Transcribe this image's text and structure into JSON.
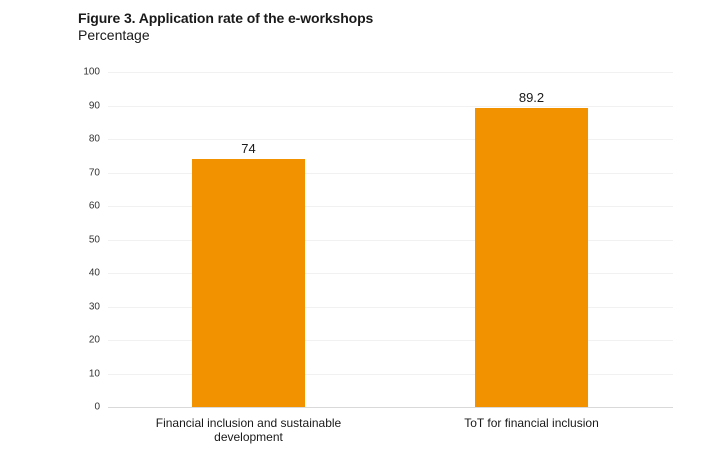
{
  "header": {
    "title": "Figure 3. Application rate of the e-workshops",
    "subtitle": "Percentage"
  },
  "chart_data": {
    "type": "bar",
    "title": "Figure 3. Application rate of the e-workshops",
    "subtitle": "Percentage",
    "categories": [
      "Financial inclusion and sustainable development",
      "ToT for financial inclusion"
    ],
    "values": [
      74,
      89.2
    ],
    "value_labels": [
      "74",
      "89.2"
    ],
    "xlabel": "",
    "ylabel": "Percentage",
    "ylim": [
      0,
      100
    ],
    "yticks": [
      0,
      10,
      20,
      30,
      40,
      50,
      60,
      70,
      80,
      90,
      100
    ],
    "ytick_labels": [
      "0",
      "10",
      "20",
      "30",
      "40",
      "50",
      "60",
      "70",
      "80",
      "90",
      "100"
    ],
    "grid": true,
    "legend": null,
    "bar_color": "#f39200"
  }
}
